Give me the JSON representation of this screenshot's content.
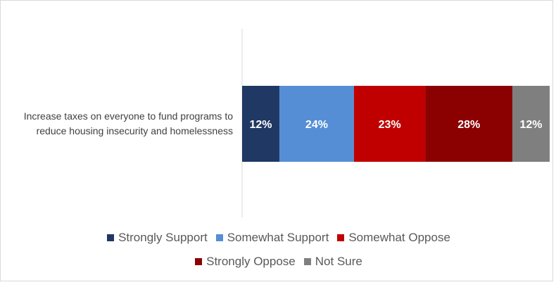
{
  "chart_data": {
    "type": "bar",
    "orientation": "horizontal",
    "stacked": true,
    "categories": [
      "Increase taxes on everyone to fund programs to reduce housing insecurity and homelessness"
    ],
    "category_label_lines": [
      "Increase taxes on everyone to fund programs to",
      "reduce housing insecurity and homelessness"
    ],
    "series": [
      {
        "name": "Strongly Support",
        "values": [
          12
        ],
        "label": "12%",
        "color": "#1f3864"
      },
      {
        "name": "Somewhat Support",
        "values": [
          24
        ],
        "label": "24%",
        "color": "#558ed5"
      },
      {
        "name": "Somewhat Oppose",
        "values": [
          23
        ],
        "label": "23%",
        "color": "#c00000"
      },
      {
        "name": "Strongly Oppose",
        "values": [
          28
        ],
        "label": "28%",
        "color": "#8b0000"
      },
      {
        "name": "Not Sure",
        "values": [
          12
        ],
        "label": "12%",
        "color": "#7f7f7f"
      }
    ],
    "legend_rows": [
      [
        "Strongly Support",
        "Somewhat Support",
        "Somewhat Oppose"
      ],
      [
        "Strongly Oppose",
        "Not Sure"
      ]
    ],
    "legend_position": "bottom",
    "xlim": [
      0,
      99
    ],
    "grid": false,
    "data_label_color": "#ffffff"
  }
}
